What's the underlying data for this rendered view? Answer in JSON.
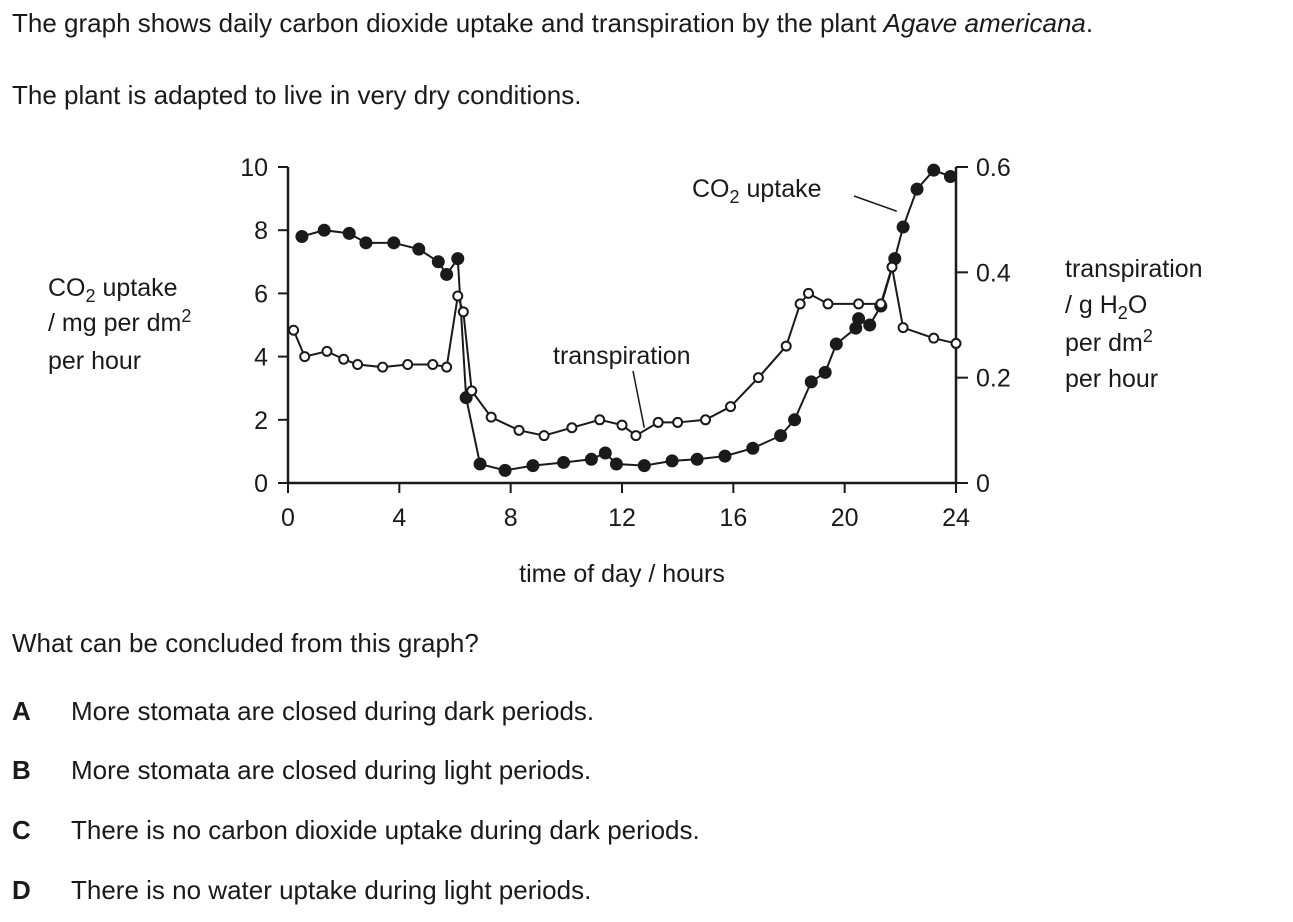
{
  "question": {
    "intro_prefix": "The graph shows daily carbon dioxide uptake and transpiration by the plant ",
    "species": "Agave americana",
    "intro_suffix": ".",
    "adaptation": "The plant is adapted to live in very dry conditions.",
    "ask": "What can be concluded from this graph?"
  },
  "options": [
    {
      "letter": "A",
      "text": "More stomata are closed during dark periods."
    },
    {
      "letter": "B",
      "text": "More stomata are closed during light periods."
    },
    {
      "letter": "C",
      "text": "There is no carbon dioxide uptake during dark periods."
    },
    {
      "letter": "D",
      "text": "There is no water uptake during light periods."
    }
  ],
  "chart_data": {
    "type": "line",
    "xlabel": "time of day / hours",
    "ylabel_left": [
      "CO2 uptake",
      "/ mg per dm2",
      "per hour"
    ],
    "ylabel_right": [
      "transpiration",
      "/ g H2O",
      "per dm2",
      "per hour"
    ],
    "xlim": [
      0,
      24
    ],
    "ylim_left": [
      0,
      10
    ],
    "ylim_right": [
      0,
      0.6
    ],
    "x_ticks": [
      0,
      4,
      8,
      12,
      16,
      20,
      24
    ],
    "y_ticks_left": [
      0,
      2,
      4,
      6,
      8,
      10
    ],
    "y_ticks_right": [
      0,
      0.2,
      0.4,
      0.6
    ],
    "grid": false,
    "series": [
      {
        "name": "CO2 uptake",
        "axis": "left",
        "marker": "filled-circle",
        "x": [
          0.5,
          1.3,
          2.2,
          2.8,
          3.8,
          4.7,
          5.4,
          5.7,
          6.1,
          6.4,
          6.9,
          7.8,
          8.8,
          9.9,
          10.9,
          11.4,
          11.8,
          12.8,
          13.8,
          14.7,
          15.7,
          16.7,
          17.7,
          18.2,
          18.8,
          19.3,
          19.7,
          20.4,
          20.5,
          20.9,
          21.3,
          21.8,
          22.1,
          22.6,
          23.2,
          23.8
        ],
        "y": [
          7.8,
          8.0,
          7.9,
          7.6,
          7.6,
          7.4,
          7.0,
          6.6,
          7.1,
          2.7,
          0.6,
          0.4,
          0.55,
          0.65,
          0.75,
          0.95,
          0.6,
          0.55,
          0.7,
          0.75,
          0.85,
          1.1,
          1.5,
          2.0,
          3.2,
          3.5,
          4.4,
          4.9,
          5.2,
          5.0,
          5.6,
          7.1,
          8.1,
          9.3,
          9.9,
          9.7
        ]
      },
      {
        "name": "transpiration",
        "axis": "right",
        "marker": "open-circle",
        "x": [
          0.2,
          0.6,
          1.4,
          2.0,
          2.5,
          3.4,
          4.3,
          5.2,
          5.7,
          6.1,
          6.3,
          6.6,
          7.3,
          8.3,
          9.2,
          10.2,
          11.2,
          12.0,
          12.5,
          13.3,
          14.0,
          15.0,
          15.9,
          16.9,
          17.9,
          18.4,
          18.7,
          19.4,
          20.5,
          21.3,
          21.7,
          22.1,
          23.2,
          24.0
        ],
        "y": [
          0.29,
          0.24,
          0.25,
          0.235,
          0.225,
          0.22,
          0.225,
          0.225,
          0.22,
          0.355,
          0.325,
          0.175,
          0.125,
          0.1,
          0.09,
          0.105,
          0.12,
          0.11,
          0.09,
          0.115,
          0.115,
          0.12,
          0.145,
          0.2,
          0.26,
          0.34,
          0.36,
          0.34,
          0.34,
          0.34,
          0.41,
          0.295,
          0.275,
          0.265
        ]
      }
    ],
    "annotations": [
      {
        "text": "CO2 uptake",
        "target_series": "CO2 uptake"
      },
      {
        "text": "transpiration",
        "target_series": "transpiration"
      }
    ]
  }
}
